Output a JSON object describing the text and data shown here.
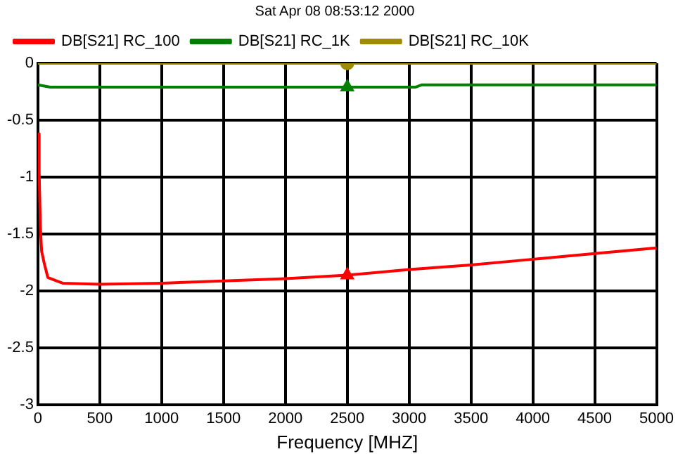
{
  "chart_data": {
    "type": "line",
    "title": "Sat Apr 08 08:53:12 2000",
    "xlabel": "Frequency [MHZ]",
    "xlim": [
      0,
      5000
    ],
    "xticks": [
      0,
      500,
      1000,
      1500,
      2000,
      2500,
      3000,
      3500,
      4000,
      4500,
      5000
    ],
    "ylim": [
      -3,
      0
    ],
    "yticks": [
      -3,
      -2.5,
      -2,
      -1.5,
      -1,
      -0.5,
      0
    ],
    "grid": true,
    "legend": "top left",
    "series": [
      {
        "name": "DB[S21] RC_100",
        "color": "#ff0000",
        "x": [
          1,
          10,
          20,
          30,
          50,
          80,
          150,
          200,
          500,
          1000,
          1500,
          2000,
          2500,
          3000,
          3500,
          4000,
          4500,
          5000
        ],
        "values": [
          -0.62,
          -0.96,
          -1.44,
          -1.65,
          -1.75,
          -1.88,
          -1.91,
          -1.93,
          -1.94,
          -1.93,
          -1.91,
          -1.89,
          -1.86,
          -1.81,
          -1.77,
          -1.72,
          -1.67,
          -1.62
        ]
      },
      {
        "name": "DB[S21] RC_1K",
        "color": "#008000",
        "x": [
          0,
          100,
          2500,
          3050,
          3100,
          5000
        ],
        "values": [
          -0.19,
          -0.21,
          -0.21,
          -0.21,
          -0.19,
          -0.19
        ]
      },
      {
        "name": "DB[S21] RC_10K",
        "color": "#a08c00",
        "x": [
          0,
          2500,
          5000
        ],
        "values": [
          0,
          0,
          0
        ]
      },
      {
        "type": "scatter",
        "color": "#ff0000",
        "marker": "triangle",
        "x": [
          2500
        ],
        "values": [
          -1.86
        ]
      },
      {
        "type": "scatter",
        "color": "#008000",
        "marker": "triangle",
        "x": [
          2500
        ],
        "values": [
          -0.21
        ]
      },
      {
        "type": "scatter",
        "color": "#a08c00",
        "marker": "circle",
        "x": [
          2500
        ],
        "values": [
          0
        ]
      }
    ]
  }
}
